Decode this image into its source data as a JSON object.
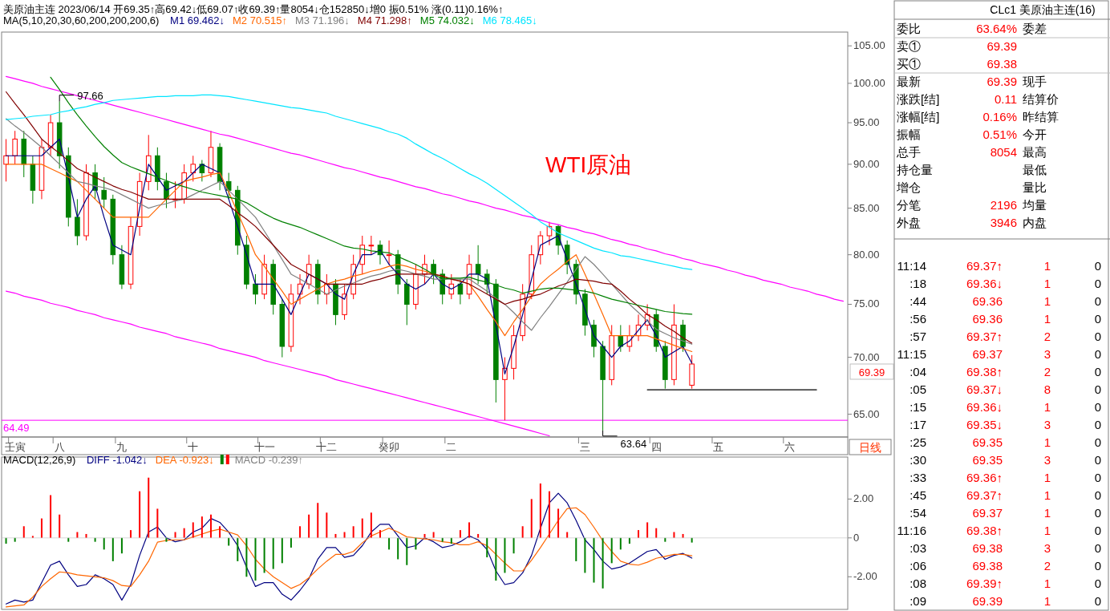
{
  "chart_data": [
    {
      "type": "candlestick",
      "title": "美原油主连 2023/06/14 开69.35↑高69.42↓低69.07↑收69.39↑量8054↓仓152850↓增0 振0.51% 涨(0.11)0.16%↑",
      "legend_title": "MA(5,10,20,30,60,200,200,200,6)",
      "legend": "top left",
      "log": true,
      "ylim": [
        63.1,
        106.9
      ],
      "categories": [
        null,
        "壬寅",
        null,
        null,
        null,
        null,
        "八",
        null,
        null,
        null,
        null,
        null,
        null,
        "九",
        null,
        null,
        null,
        null,
        null,
        null,
        null,
        "十",
        null,
        null,
        null,
        null,
        null,
        null,
        null,
        "十一",
        null,
        null,
        null,
        null,
        null,
        null,
        "十二",
        null,
        null,
        null,
        null,
        null,
        null,
        "癸卯",
        null,
        null,
        null,
        null,
        null,
        null,
        "二",
        null,
        null,
        null,
        null,
        null,
        null,
        null,
        null,
        null,
        null,
        null,
        null,
        null,
        null,
        "三",
        null,
        null,
        null,
        null,
        null,
        null,
        null,
        "四",
        null,
        null,
        null,
        null,
        null,
        null,
        "五",
        null,
        null,
        null,
        null,
        null,
        null,
        null,
        "六",
        null,
        null,
        null,
        null,
        null,
        null
      ],
      "yticks": [
        {
          "value": 65,
          "label": "65.00"
        },
        {
          "value": 70,
          "label": "70.00"
        },
        {
          "value": 75,
          "label": "75.00"
        },
        {
          "value": 80,
          "label": "80.00"
        },
        {
          "value": 85,
          "label": "85.00"
        },
        {
          "value": 90,
          "label": "90.00"
        },
        {
          "value": 95,
          "label": "95.00"
        },
        {
          "value": 100,
          "label": "100.00"
        },
        {
          "value": 105,
          "label": "105.00"
        }
      ],
      "ohlc": [
        [
          90,
          93,
          88,
          91
        ],
        [
          91,
          94,
          90,
          93
        ],
        [
          93,
          94,
          88.5,
          90
        ],
        [
          90,
          91,
          85.5,
          87
        ],
        [
          87,
          93,
          86,
          92
        ],
        [
          92,
          96,
          91,
          95
        ],
        [
          95,
          97.66,
          89.5,
          91
        ],
        [
          91,
          92,
          83,
          84
        ],
        [
          84,
          86,
          81,
          82
        ],
        [
          82,
          90,
          81.5,
          89
        ],
        [
          89,
          90,
          86,
          87
        ],
        [
          87,
          88.5,
          85,
          86
        ],
        [
          86,
          86.5,
          79,
          80
        ],
        [
          80,
          81,
          76.5,
          77
        ],
        [
          77,
          84,
          76.5,
          83
        ],
        [
          83,
          89,
          82,
          88
        ],
        [
          88,
          93.5,
          87,
          91
        ],
        [
          91,
          92,
          87,
          88
        ],
        [
          88,
          89,
          85,
          86
        ],
        [
          86,
          88,
          85,
          86
        ],
        [
          86,
          90,
          85.5,
          89
        ],
        [
          89,
          91,
          88,
          90
        ],
        [
          90,
          90.5,
          88,
          89
        ],
        [
          89,
          94,
          88.5,
          92
        ],
        [
          92,
          92.5,
          87,
          88
        ],
        [
          88,
          89,
          86,
          87
        ],
        [
          87,
          87.5,
          80,
          81
        ],
        [
          81,
          82,
          76.5,
          77
        ],
        [
          77,
          78,
          75,
          76
        ],
        [
          76,
          80,
          75.5,
          79
        ],
        [
          79,
          79.5,
          74,
          75
        ],
        [
          75,
          75.5,
          70,
          71
        ],
        [
          71,
          77,
          70.5,
          76
        ],
        [
          76,
          78,
          75,
          77
        ],
        [
          77,
          80,
          76.5,
          79
        ],
        [
          79,
          79.5,
          75,
          76
        ],
        [
          76,
          78,
          75,
          77
        ],
        [
          77,
          77.5,
          73,
          74
        ],
        [
          74,
          77,
          73.5,
          76
        ],
        [
          76,
          80,
          75.5,
          79
        ],
        [
          79,
          82,
          78,
          81
        ],
        [
          81,
          82,
          80,
          81
        ],
        [
          81,
          81.5,
          79,
          80
        ],
        [
          80,
          81.5,
          79,
          80
        ],
        [
          80,
          80.5,
          76,
          77
        ],
        [
          77,
          77.5,
          73,
          75
        ],
        [
          75,
          79,
          74.5,
          78
        ],
        [
          78,
          80,
          77,
          79
        ],
        [
          79,
          79.5,
          77,
          78
        ],
        [
          78,
          78.5,
          75,
          76
        ],
        [
          76,
          78,
          75.5,
          77
        ],
        [
          77,
          77.5,
          75,
          76
        ],
        [
          76,
          80,
          75.5,
          79
        ],
        [
          79,
          81,
          77,
          78
        ],
        [
          78,
          78.5,
          76,
          77
        ],
        [
          77,
          77.5,
          66,
          68
        ],
        [
          68,
          70,
          64.49,
          69
        ],
        [
          69,
          73,
          68,
          72
        ],
        [
          72,
          77,
          71.5,
          76
        ],
        [
          76,
          81,
          75.5,
          80
        ],
        [
          80,
          82.5,
          79,
          82
        ],
        [
          82,
          83.5,
          81,
          83
        ],
        [
          83,
          83.2,
          80,
          81
        ],
        [
          81,
          81.5,
          78,
          79
        ],
        [
          79,
          79.5,
          75,
          76
        ],
        [
          76,
          76.5,
          72,
          73
        ],
        [
          73,
          73.5,
          70,
          71
        ],
        [
          71,
          71.5,
          63.64,
          68
        ],
        [
          68,
          73,
          67.5,
          72
        ],
        [
          72,
          73,
          70.5,
          71
        ],
        [
          71,
          73,
          70.5,
          72
        ],
        [
          72,
          74,
          71.5,
          73
        ],
        [
          73,
          75,
          72.5,
          74
        ],
        [
          74,
          74.5,
          70.5,
          71
        ],
        [
          71,
          71.5,
          67.2,
          68
        ],
        [
          68,
          75,
          67.5,
          73
        ],
        [
          73,
          73.5,
          70.5,
          71
        ],
        [
          67.5,
          70.2,
          67.2,
          69.39
        ],
        null,
        null,
        null,
        null,
        null,
        null,
        null,
        null,
        null,
        null,
        null,
        null,
        null,
        null,
        null,
        null,
        null
      ],
      "colors": [
        "#ff0000",
        "#ff0000",
        "#008000",
        "#008000",
        "#ff0000",
        "#ff0000",
        "#008000",
        "#008000",
        "#008000",
        "#ff0000",
        "#008000",
        "#008000",
        "#008000",
        "#008000",
        "#ff0000",
        "#ff0000",
        "#ff0000",
        "#008000",
        "#008000",
        "#ff0000",
        "#ff0000",
        "#ff0000",
        "#008000",
        "#ff0000",
        "#008000",
        "#008000",
        "#008000",
        "#008000",
        "#008000",
        "#ff0000",
        "#008000",
        "#008000",
        "#ff0000",
        "#ff0000",
        "#ff0000",
        "#008000",
        "#ff0000",
        "#008000",
        "#ff0000",
        "#ff0000",
        "#ff0000",
        "#ff0000",
        "#008000",
        "#ff0000",
        "#008000",
        "#008000",
        "#ff0000",
        "#ff0000",
        "#008000",
        "#008000",
        "#ff0000",
        "#008000",
        "#ff0000",
        "#008000",
        "#008000",
        "#008000",
        "#ff0000",
        "#ff0000",
        "#ff0000",
        "#ff0000",
        "#ff0000",
        "#ff0000",
        "#008000",
        "#008000",
        "#008000",
        "#008000",
        "#008000",
        "#008000",
        "#ff0000",
        "#008000",
        "#ff0000",
        "#ff0000",
        "#ff0000",
        "#008000",
        "#008000",
        "#ff0000",
        "#008000",
        "#ff0000",
        null,
        null,
        null,
        null,
        null,
        null,
        null,
        null,
        null,
        null,
        null,
        null,
        null,
        null,
        null,
        null,
        null
      ],
      "series": [
        {
          "type": "line",
          "color": "#ff00ff",
          "values": [
            100.9,
            100.6,
            100.3,
            100.0,
            99.6,
            99.3,
            99.0,
            98.7,
            98.4,
            98.1,
            97.8,
            97.5,
            97.2,
            96.9,
            96.6,
            96.3,
            96.0,
            95.7,
            95.4,
            95.1,
            94.8,
            94.5,
            94.2,
            93.9,
            93.6,
            93.4,
            93.1,
            92.8,
            92.5,
            92.2,
            91.9,
            91.6,
            91.3,
            91.1,
            90.8,
            90.5,
            90.2,
            89.9,
            89.6,
            89.4,
            89.1,
            88.8,
            88.5,
            88.3,
            88.0,
            87.7,
            87.4,
            87.2,
            86.9,
            86.6,
            86.4,
            86.1,
            85.8,
            85.6,
            85.3,
            85.0,
            84.8,
            84.5,
            84.2,
            84.0,
            83.7,
            83.4,
            83.2,
            82.9,
            82.7,
            82.4,
            82.2,
            81.9,
            81.6,
            81.4,
            81.1,
            80.9,
            80.6,
            80.4,
            80.1,
            79.9,
            79.6,
            79.4,
            79.1,
            78.9,
            78.7,
            78.4,
            78.2,
            77.9,
            77.7,
            77.4,
            77.2,
            77.0,
            76.7,
            76.5,
            76.3,
            76.0,
            75.8,
            75.5,
            75.3
          ]
        },
        {
          "type": "line",
          "color": "#ff00ff",
          "values": [
            76.3,
            76.1,
            75.8,
            75.6,
            75.4,
            75.1,
            74.9,
            74.7,
            74.4,
            74.2,
            74.0,
            73.7,
            73.5,
            73.3,
            73.1,
            72.8,
            72.6,
            72.4,
            72.2,
            71.9,
            71.7,
            71.5,
            71.3,
            71.1,
            70.8,
            70.6,
            70.4,
            70.2,
            70.0,
            69.7,
            69.5,
            69.3,
            69.1,
            68.9,
            68.7,
            68.5,
            68.3,
            68.0,
            67.8,
            67.6,
            67.4,
            67.2,
            67.0,
            66.8,
            66.6,
            66.4,
            66.2,
            66.0,
            65.8,
            65.6,
            65.4,
            65.2,
            65.0,
            64.8,
            64.6,
            64.4,
            64.2,
            64.0,
            63.8,
            63.6,
            63.4,
            63.2,
            null,
            null,
            null,
            null,
            null,
            null,
            null,
            null,
            null,
            null,
            null,
            null,
            null,
            null,
            null,
            null,
            null,
            null,
            null,
            null,
            null,
            null,
            null,
            null,
            null,
            null,
            null,
            null,
            null,
            null,
            null,
            null,
            null
          ]
        },
        {
          "type": "line",
          "color": "#000000",
          "values": [
            null,
            null,
            null,
            null,
            null,
            null,
            null,
            null,
            null,
            null,
            null,
            null,
            null,
            null,
            null,
            null,
            null,
            null,
            null,
            null,
            null,
            null,
            null,
            null,
            null,
            null,
            null,
            null,
            null,
            null,
            null,
            null,
            null,
            null,
            null,
            null,
            null,
            null,
            null,
            null,
            null,
            null,
            null,
            null,
            null,
            null,
            null,
            null,
            null,
            null,
            null,
            null,
            null,
            null,
            null,
            null,
            null,
            null,
            null,
            null,
            null,
            null,
            null,
            null,
            null,
            null,
            null,
            null,
            null,
            null,
            null,
            null,
            67.1,
            67.1,
            67.1,
            67.1,
            67.1,
            67.1,
            67.1,
            67.1,
            67.1,
            67.1,
            67.1,
            67.1,
            67.1,
            67.1,
            67.1,
            67.1,
            67.1,
            67.1,
            67.1,
            67.1,
            null,
            null,
            null
          ]
        },
        {
          "type": "line",
          "name": "M1 69.462↓",
          "color": "#000080",
          "values": [
            91,
            91,
            91,
            91,
            91,
            92,
            93,
            88.5,
            84,
            86,
            87.5,
            84,
            81,
            80.5,
            80,
            85,
            90,
            88.5,
            87,
            87.5,
            88,
            89,
            90,
            89.5,
            89,
            86,
            83,
            80,
            77,
            77,
            77,
            75.5,
            74,
            76,
            78,
            77.5,
            77,
            76,
            75.5,
            78,
            80,
            80,
            80.5,
            79,
            78,
            77,
            76.5,
            77,
            78,
            77,
            76.5,
            77,
            78,
            78,
            77.5,
            73,
            68.5,
            71,
            74,
            77.5,
            81,
            81.5,
            82,
            79.5,
            77,
            74.5,
            72,
            71,
            70,
            71,
            71.5,
            72.5,
            73.5,
            72,
            70,
            70.5,
            71,
            69.46,
            null,
            null,
            null,
            null,
            null,
            null,
            null,
            null,
            null,
            null,
            null,
            null,
            null,
            null,
            null,
            null,
            null
          ]
        },
        {
          "type": "line",
          "name": "M2 70.515↑",
          "color": "#ff6600",
          "values": [
            90,
            90,
            90,
            90,
            90,
            89.5,
            89,
            88.5,
            88,
            87,
            86,
            85,
            84,
            84,
            84,
            84,
            84,
            85,
            86,
            87,
            88,
            88.3,
            88.5,
            88.8,
            89,
            86.8,
            84.5,
            82.3,
            80,
            78.8,
            77.5,
            76.3,
            75,
            75.5,
            76,
            76.5,
            77,
            77.3,
            77.5,
            77.8,
            78,
            78.3,
            78.5,
            78.8,
            79,
            78.8,
            78.5,
            78.3,
            78,
            77.8,
            77.5,
            77.3,
            77,
            75.8,
            74.5,
            73.3,
            72,
            73.3,
            74.5,
            75.8,
            77,
            77.8,
            78.5,
            79.3,
            80,
            78,
            76,
            74,
            72,
            72,
            72,
            72,
            72,
            71.7,
            71.4,
            71.1,
            70.8,
            70.52,
            null,
            null,
            null,
            null,
            null,
            null,
            null,
            null,
            null,
            null,
            null,
            null,
            null,
            null,
            null,
            null,
            null
          ]
        },
        {
          "type": "line",
          "name": "M3 71.196↓",
          "color": "#808080",
          "values": [
            95.5,
            94.6,
            93.8,
            92.9,
            92,
            91,
            90,
            89,
            88,
            87.8,
            87.5,
            87.3,
            87,
            86.5,
            86,
            85.5,
            85,
            85.3,
            85.5,
            85.8,
            86,
            86.5,
            87,
            87.5,
            88,
            87,
            86,
            85,
            84,
            82.5,
            81,
            79.5,
            78,
            77.5,
            77,
            76.5,
            76,
            76.4,
            76.8,
            77.1,
            77.5,
            77.8,
            78,
            78.3,
            78.5,
            78.3,
            78,
            77.8,
            77.5,
            77.5,
            77.5,
            77.5,
            77.5,
            76.9,
            76.3,
            75.6,
            75,
            74.2,
            73.3,
            72.5,
            73.7,
            74.8,
            76,
            77.2,
            78.5,
            79.8,
            79,
            78,
            77,
            76,
            75,
            74.2,
            73.4,
            72.6,
            72.2,
            71.8,
            71.5,
            71.2,
            null,
            null,
            null,
            null,
            null,
            null,
            null,
            null,
            null,
            null,
            null,
            null,
            null,
            null,
            null,
            null,
            null
          ]
        },
        {
          "type": "line",
          "name": "M4 71.298↑",
          "color": "#800000",
          "values": [
            98.9,
            97.4,
            96,
            94.5,
            93,
            92.1,
            91.3,
            90.4,
            89.5,
            89,
            88.5,
            88,
            87.5,
            87.1,
            86.8,
            86.4,
            86,
            86,
            86,
            86,
            86,
            86,
            86,
            86,
            86,
            85.3,
            84.5,
            83.8,
            83,
            82,
            81,
            80,
            79,
            78.5,
            78,
            77.5,
            77,
            77,
            77,
            77,
            77,
            77.3,
            77.5,
            77.8,
            78,
            78,
            78,
            78,
            78,
            77.8,
            77.5,
            77.3,
            77,
            76.5,
            76,
            75.5,
            75,
            75.3,
            75.5,
            75.8,
            76,
            76.4,
            76.8,
            77.1,
            77.5,
            77.4,
            77.3,
            77.1,
            77,
            76.3,
            75.5,
            74.8,
            74,
            73.5,
            72.9,
            72.4,
            71.8,
            71.3,
            null,
            null,
            null,
            null,
            null,
            null,
            null,
            null,
            null,
            null,
            null,
            null,
            null,
            null,
            null,
            null,
            null
          ]
        },
        {
          "type": "line",
          "name": "M5 74.032↓",
          "color": "#008000",
          "values": [
            null,
            null,
            null,
            null,
            null,
            100.8,
            99.2,
            97.5,
            96,
            94.6,
            93.3,
            92.1,
            91.1,
            90.2,
            89.7,
            89.3,
            88.9,
            88.5,
            88.1,
            87.7,
            87.4,
            87.1,
            86.8,
            86.6,
            86.4,
            86.2,
            86,
            85.6,
            85,
            84.4,
            83.9,
            83.5,
            83.2,
            82.9,
            82.5,
            82.1,
            81.7,
            81.3,
            80.9,
            80.7,
            80.6,
            80.4,
            80.3,
            80.2,
            79.8,
            79.4,
            79,
            78.5,
            78,
            77.5,
            77.6,
            77.6,
            77.7,
            77.4,
            77.2,
            76.9,
            76.6,
            76.4,
            76.1,
            76.3,
            76.5,
            76.6,
            76.6,
            76.5,
            76.4,
            76.3,
            76.1,
            75.8,
            75.5,
            75.3,
            75.1,
            74.9,
            74.7,
            74.5,
            74.3,
            74.2,
            74.1,
            74.03,
            null,
            null,
            null,
            null,
            null,
            null,
            null,
            null,
            null,
            null,
            null,
            null,
            null,
            null,
            null,
            null,
            null
          ]
        },
        {
          "type": "line",
          "name": "M6 78.465↓",
          "color": "#00e5ff",
          "values": [
            95.4,
            95.5,
            95.6,
            95.8,
            95.9,
            96,
            96.3,
            96.5,
            96.8,
            97,
            97.3,
            97.5,
            97.8,
            97.9,
            98,
            98.1,
            98.2,
            98.3,
            98.3,
            98.4,
            98.4,
            98.4,
            98.5,
            98.5,
            98.4,
            98.3,
            98.1,
            97.9,
            97.7,
            97.5,
            97.3,
            97.1,
            96.9,
            96.8,
            96.6,
            96.4,
            96.2,
            95.8,
            95.5,
            95.2,
            94.9,
            94.6,
            94.3,
            93.9,
            93.6,
            93.1,
            92.4,
            91.8,
            91.2,
            90.7,
            90.1,
            89.5,
            88.9,
            88.4,
            87.8,
            87.1,
            86.4,
            85.7,
            85.0,
            84.3,
            83.5,
            82.9,
            82.3,
            81.9,
            81.5,
            81.1,
            80.7,
            80.4,
            80.2,
            79.9,
            79.8,
            79.6,
            79.4,
            79.2,
            79.0,
            78.8,
            78.6,
            78.47,
            null,
            null,
            null,
            null,
            null,
            null,
            null,
            null,
            null,
            null,
            null,
            null,
            null,
            null,
            null,
            null,
            null
          ]
        }
      ],
      "ref_lines": [
        {
          "axis": "y",
          "value": 64.49,
          "label": "64.49",
          "color": "#ff00ff"
        }
      ],
      "annotations": [
        "WTI原油",
        "日线",
        "69.39",
        {
          "text": "97.66",
          "x": "八",
          "y": 97.66
        },
        "63.64"
      ]
    },
    {
      "type": "bar",
      "legend_title": "MACD(12,26,9)",
      "legend": "top left",
      "tick_labels": "y",
      "ylim": [
        -3.68,
        4.16
      ],
      "categories": [
        null,
        null,
        null,
        null,
        null,
        null,
        null,
        null,
        null,
        null,
        null,
        null,
        null,
        null,
        null,
        null,
        null,
        null,
        null,
        null,
        null,
        null,
        null,
        null,
        null,
        null,
        null,
        null,
        null,
        null,
        null,
        null,
        null,
        null,
        null,
        null,
        null,
        null,
        null,
        null,
        null,
        null,
        null,
        null,
        null,
        null,
        null,
        null,
        null,
        null,
        null,
        null,
        null,
        null,
        null,
        null,
        null,
        null,
        null,
        null,
        null,
        null,
        null,
        null,
        null,
        null,
        null,
        null,
        null,
        null,
        null,
        null,
        null,
        null,
        null,
        null,
        null,
        null,
        null,
        null,
        null,
        null,
        null,
        null,
        null,
        null,
        null,
        null,
        null,
        null,
        null,
        null,
        null,
        null,
        null
      ],
      "yticks": [
        {
          "value": -2,
          "label": "-2.00"
        },
        0,
        {
          "value": 2,
          "label": "2.00"
        }
      ],
      "series": [
        {
          "type": "line",
          "name": "DIFF -1.042↓",
          "color": "#000080",
          "values": [
            -3.4,
            -3.2,
            -3.3,
            -3.2,
            -2.3,
            -1.4,
            -1.2,
            -1.9,
            -2.5,
            -2.4,
            -1.9,
            -2.1,
            -2.4,
            -3.2,
            -2.4,
            -0.9,
            0.3,
            0.56,
            0.0,
            -0.2,
            -0.1,
            0.3,
            0.5,
            1.0,
            0.8,
            0.3,
            -0.4,
            -1.5,
            -2.5,
            -2.3,
            -2.3,
            -2.9,
            -3.2,
            -2.7,
            -2.1,
            -1.1,
            -0.5,
            -0.5,
            -1.0,
            -0.9,
            -0.4,
            0.3,
            0.7,
            0.7,
            0.1,
            -0.5,
            -0.4,
            0.0,
            -0.2,
            -0.5,
            -0.4,
            -0.2,
            0.1,
            -0.1,
            -0.6,
            -1.7,
            -2.4,
            -2.3,
            -1.8,
            -0.9,
            0.5,
            1.8,
            2.3,
            1.8,
            0.9,
            -0.1,
            -0.6,
            -1.2,
            -1.6,
            -1.5,
            -1.3,
            -1.0,
            -0.7,
            -0.6,
            -1.1,
            -0.9,
            -0.8,
            -1.04,
            null,
            null,
            null,
            null,
            null,
            null,
            null,
            null,
            null,
            null,
            null,
            null,
            null,
            null,
            null,
            null,
            null
          ]
        },
        {
          "type": "line",
          "name": "DEA -0.923↓",
          "color": "#ff6600",
          "values": [
            -3.55,
            -3.5,
            -3.45,
            -3.05,
            -2.5,
            -2.1,
            -1.75,
            -1.8,
            -1.9,
            -1.95,
            -2.0,
            -2.05,
            -2.2,
            -2.45,
            -2.5,
            -1.9,
            -1.2,
            -0.22,
            -0.13,
            -0.1,
            -0.1,
            0.05,
            0.2,
            0.35,
            0.45,
            0.3,
            0.15,
            -0.4,
            -1.1,
            -1.6,
            -2.0,
            -2.3,
            -2.6,
            -2.4,
            -2.05,
            -1.6,
            -1.2,
            -0.85,
            -0.85,
            -0.7,
            -0.25,
            0.1,
            0.3,
            0.5,
            0.3,
            0.05,
            0.0,
            -0.05,
            -0.1,
            -0.2,
            -0.25,
            -0.35,
            -0.35,
            -0.2,
            -0.4,
            -0.85,
            -1.3,
            -1.7,
            -1.7,
            -1.15,
            -0.5,
            0.2,
            0.9,
            1.5,
            1.55,
            1.2,
            0.55,
            -0.15,
            -0.7,
            -1.2,
            -1.35,
            -1.4,
            -1.25,
            -1.05,
            -0.95,
            -0.85,
            -0.85,
            -0.92,
            null,
            null,
            null,
            null,
            null,
            null,
            null,
            null,
            null,
            null,
            null,
            null,
            null,
            null,
            null,
            null,
            null
          ]
        },
        {
          "type": "bar",
          "name": "MACD -0.239↑",
          "color": "#808080",
          "values": [
            -0.3,
            -0.2,
            0.6,
            0.1,
            1.0,
            2.2,
            1.2,
            -0.2,
            0.3,
            0.2,
            -0.2,
            -0.6,
            -1.2,
            -0.8,
            0.4,
            2.4,
            3.1,
            1.5,
            -0.2,
            0.3,
            0.5,
            0.8,
            1.1,
            1.2,
            0.6,
            -0.4,
            -1.2,
            -2.0,
            -2.2,
            -1.8,
            -1.6,
            -1.3,
            -0.5,
            0.6,
            1.2,
            1.8,
            1.3,
            0.2,
            0.3,
            0.6,
            1.0,
            1.3,
            0.4,
            -0.6,
            -1.1,
            -1.4,
            -0.6,
            0.2,
            0.3,
            -0.2,
            -0.3,
            0.4,
            0.8,
            0.2,
            -1.0,
            -2.2,
            -1.8,
            -0.8,
            0.6,
            2.0,
            2.8,
            2.4,
            1.5,
            0.3,
            -1.2,
            -1.8,
            -2.3,
            -2.6,
            -1.3,
            -0.6,
            -0.3,
            0.4,
            0.8,
            0.5,
            -0.2,
            0.3,
            0.2,
            -0.24,
            null,
            null,
            null,
            null,
            null,
            null,
            null,
            null,
            null,
            null,
            null,
            null,
            null,
            null,
            null,
            null,
            null
          ],
          "colors": [
            "#008000",
            "#008000",
            "#ff0000",
            "#ff0000",
            "#ff0000",
            "#ff0000",
            "#ff0000",
            "#008000",
            "#ff0000",
            "#ff0000",
            "#008000",
            "#008000",
            "#008000",
            "#008000",
            "#ff0000",
            "#ff0000",
            "#ff0000",
            "#ff0000",
            "#008000",
            "#ff0000",
            "#ff0000",
            "#ff0000",
            "#ff0000",
            "#ff0000",
            "#ff0000",
            "#008000",
            "#008000",
            "#008000",
            "#008000",
            "#008000",
            "#008000",
            "#008000",
            "#008000",
            "#ff0000",
            "#ff0000",
            "#ff0000",
            "#ff0000",
            "#ff0000",
            "#ff0000",
            "#ff0000",
            "#ff0000",
            "#ff0000",
            "#ff0000",
            "#008000",
            "#008000",
            "#008000",
            "#008000",
            "#ff0000",
            "#ff0000",
            "#008000",
            "#008000",
            "#ff0000",
            "#ff0000",
            "#ff0000",
            "#008000",
            "#008000",
            "#008000",
            "#008000",
            "#ff0000",
            "#ff0000",
            "#ff0000",
            "#ff0000",
            "#ff0000",
            "#ff0000",
            "#008000",
            "#008000",
            "#008000",
            "#008000",
            "#008000",
            "#008000",
            "#008000",
            "#ff0000",
            "#ff0000",
            "#ff0000",
            "#008000",
            "#ff0000",
            "#ff0000",
            "#008000",
            null,
            null,
            null,
            null,
            null,
            null,
            null,
            null,
            null,
            null,
            null,
            null,
            null,
            null,
            null,
            null,
            null
          ]
        }
      ]
    },
    {
      "type": "other",
      "annotations": [
        "CLc1 美原油主连(16)",
        "委比",
        "63.64%",
        "委差",
        "卖①",
        "69.39",
        "买①",
        "69.38",
        "最新",
        "69.39",
        "现手",
        "涨跌[结]",
        "0.11",
        "结算价",
        "涨幅[结]",
        "0.16%",
        "昨结算",
        "振幅",
        "0.51%",
        "今开",
        "总手",
        "8054",
        "最高",
        "持仓量",
        "最低",
        "增仓",
        "量比",
        "分笔",
        "2196",
        "均量",
        "外盘",
        "3946",
        "内盘",
        "11:14",
        "69.37↑",
        "1",
        "0",
        ":18",
        "69.36↓",
        "1",
        "0",
        ":44",
        "69.36",
        "1",
        "0",
        ":56",
        "69.36",
        "1",
        "0",
        ":57",
        "69.37↑",
        "2",
        "0",
        "11:15",
        "69.37",
        "3",
        "0",
        ":04",
        "69.38↑",
        "2",
        "0",
        ":05",
        "69.37↓",
        "8",
        "0",
        ":15",
        "69.36↓",
        "1",
        "0",
        ":17",
        "69.35↓",
        "3",
        "0",
        ":25",
        "69.35",
        "1",
        "0",
        ":30",
        "69.35",
        "3",
        "0",
        ":33",
        "69.36↑",
        "1",
        "0",
        ":45",
        "69.37↑",
        "1",
        "0",
        ":54",
        "69.37",
        "1",
        "0",
        "11:16",
        "69.38↑",
        "1",
        "0",
        ":03",
        "69.38",
        "3",
        "0",
        ":06",
        "69.38",
        "2",
        "0",
        ":08",
        "69.39↑",
        "1",
        "0",
        ":09",
        "69.39",
        "1",
        "0"
      ]
    }
  ]
}
